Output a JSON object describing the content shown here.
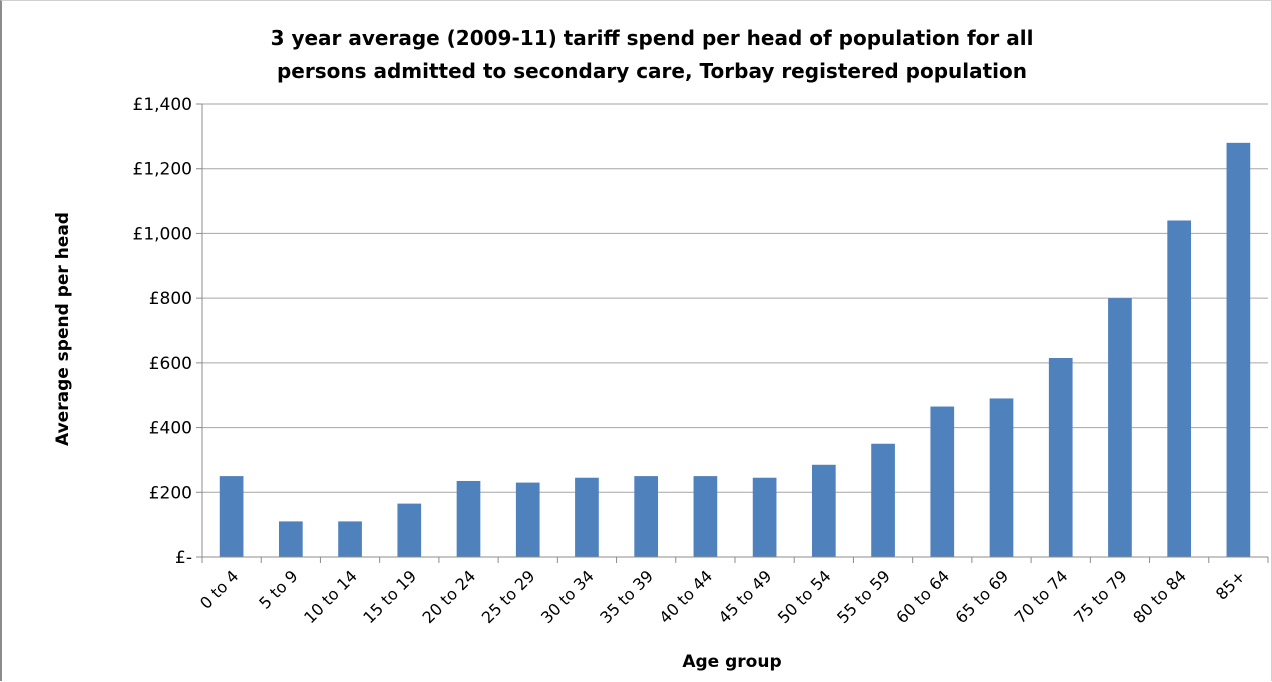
{
  "chart_data": {
    "type": "bar",
    "title_lines": [
      "3 year average (2009-11) tariff spend per head of population  for all",
      "persons admitted to secondary care, Torbay registered population"
    ],
    "xlabel": "Age group",
    "ylabel": "Average spend per head",
    "categories": [
      "0 to 4",
      "5 to 9",
      "10 to 14",
      "15 to 19",
      "20 to 24",
      "25 to 29",
      "30 to 34",
      "35 to 39",
      "40 to 44",
      "45 to 49",
      "50 to 54",
      "55 to 59",
      "60 to 64",
      "65 to 69",
      "70 to 74",
      "75 to 79",
      "80 to 84",
      "85+"
    ],
    "values": [
      250,
      110,
      110,
      165,
      235,
      230,
      245,
      250,
      250,
      245,
      285,
      350,
      465,
      490,
      615,
      800,
      1040,
      1280
    ],
    "ylim": [
      0,
      1400
    ],
    "yticks": [
      {
        "value": 0,
        "label": "£-"
      },
      {
        "value": 200,
        "label": "£200"
      },
      {
        "value": 400,
        "label": "£400"
      },
      {
        "value": 600,
        "label": "£600"
      },
      {
        "value": 800,
        "label": "£800"
      },
      {
        "value": 1000,
        "label": "£1,000"
      },
      {
        "value": 1200,
        "label": "£1,200"
      },
      {
        "value": 1400,
        "label": "£1,400"
      }
    ],
    "grid": true,
    "legend": "none",
    "bar_color": "#4f81bd",
    "grid_color": "#a6a6a6",
    "axis_color": "#8c8c8c"
  }
}
